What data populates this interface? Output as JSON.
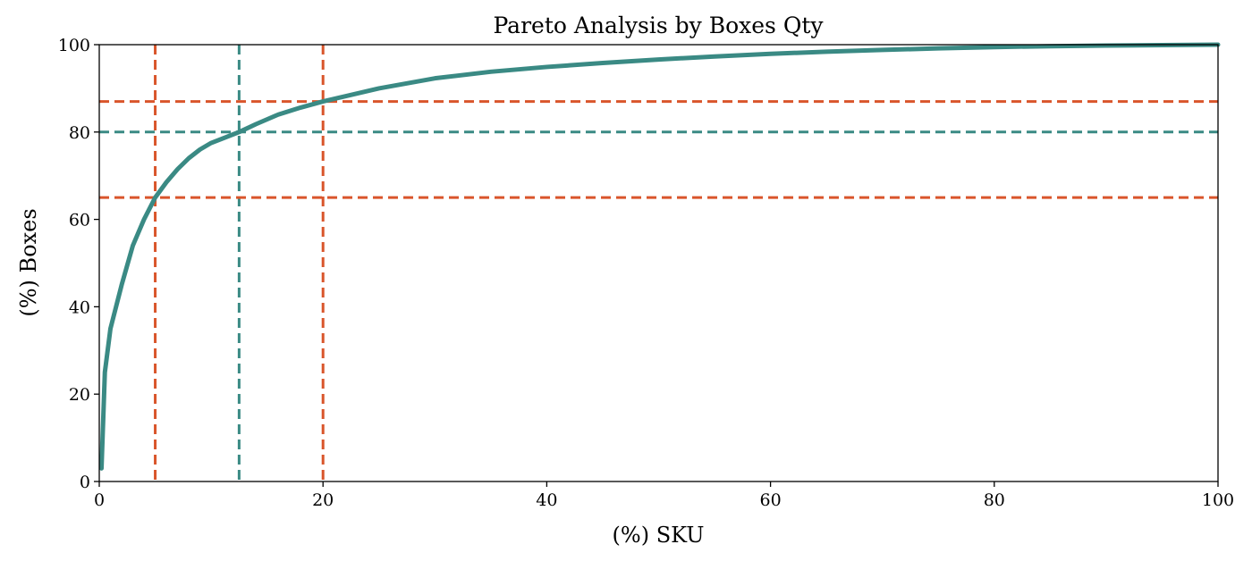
{
  "chart_data": {
    "type": "line",
    "title": "Pareto Analysis by Boxes Qty",
    "xlabel": "(%) SKU",
    "ylabel": "(%) Boxes",
    "xlim": [
      0,
      100
    ],
    "ylim": [
      0,
      100
    ],
    "x_ticks": [
      "0",
      "20",
      "40",
      "60",
      "80",
      "100"
    ],
    "y_ticks": [
      "0",
      "20",
      "40",
      "60",
      "80",
      "100"
    ],
    "grid": false,
    "legend": "none",
    "colors": {
      "curve": "#3a8a84",
      "orange": "#d9552b",
      "teal": "#3a8a84",
      "axes": "#000000"
    },
    "series": [
      {
        "x": [
          0.2,
          0.5,
          1,
          2,
          3,
          4,
          5,
          6,
          7,
          8,
          9,
          10,
          12,
          12.5,
          14,
          16,
          18,
          20,
          25,
          30,
          35,
          40,
          45,
          50,
          55,
          60,
          65,
          70,
          75,
          80,
          85,
          90,
          95,
          100
        ],
        "y": [
          3,
          25,
          35,
          45,
          54,
          60,
          65,
          68.5,
          71.5,
          74,
          76,
          77.5,
          79.5,
          80,
          81.8,
          84,
          85.6,
          87,
          90,
          92.3,
          93.8,
          94.9,
          95.8,
          96.6,
          97.3,
          97.9,
          98.4,
          98.8,
          99.15,
          99.45,
          99.65,
          99.8,
          99.9,
          100
        ]
      }
    ],
    "reference_lines": [
      {
        "orientation": "vertical",
        "value": 5,
        "color": "orange"
      },
      {
        "orientation": "vertical",
        "value": 12.5,
        "color": "teal"
      },
      {
        "orientation": "vertical",
        "value": 20,
        "color": "orange"
      },
      {
        "orientation": "horizontal",
        "value": 87,
        "color": "orange"
      },
      {
        "orientation": "horizontal",
        "value": 80,
        "color": "teal"
      },
      {
        "orientation": "horizontal",
        "value": 65,
        "color": "orange"
      }
    ]
  }
}
